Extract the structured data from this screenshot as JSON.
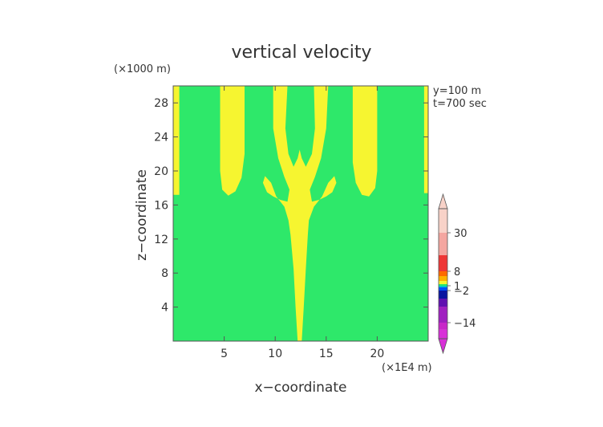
{
  "chart_data": {
    "type": "heatmap",
    "title": "vertical velocity",
    "xlabel": "x−coordinate",
    "ylabel": "z−coordinate",
    "x_unit": "(×1E4 m)",
    "y_unit": "(×1000 m)",
    "annotations": [
      "y=100  m",
      "t=700 sec"
    ],
    "xlim": [
      0,
      25
    ],
    "ylim": [
      0,
      30
    ],
    "x_ticks": [
      5,
      10,
      15,
      20
    ],
    "y_ticks": [
      4,
      8,
      12,
      16,
      20,
      24,
      28
    ],
    "x_tick_labels": [
      "5",
      "10",
      "15",
      "20"
    ],
    "y_tick_labels": [
      "4",
      "8",
      "12",
      "16",
      "20",
      "24",
      "28"
    ],
    "background_color": "#2ee86a",
    "positive_color": "#f6f530",
    "colorbar": {
      "labels": [
        {
          "text": "30",
          "value": 30
        },
        {
          "text": "8",
          "value": 8
        },
        {
          "text": "1",
          "value": 1
        },
        {
          "text": "−2",
          "value": -2
        },
        {
          "text": "−14",
          "value": -14
        }
      ],
      "segments": [
        {
          "from": 30,
          "to": 45,
          "color": "#f8d2c8"
        },
        {
          "from": 20,
          "to": 30,
          "color": "#f4a6a0"
        },
        {
          "from": 8,
          "to": 20,
          "color": "#ee3636"
        },
        {
          "from": 6,
          "to": 8,
          "color": "#ff6a00"
        },
        {
          "from": 4,
          "to": 6,
          "color": "#ffb000"
        },
        {
          "from": 2,
          "to": 4,
          "color": "#f6f530"
        },
        {
          "from": 1,
          "to": 2,
          "color": "#2ee86a"
        },
        {
          "from": 0,
          "to": 1,
          "color": "#00c8c8"
        },
        {
          "from": -2,
          "to": 0,
          "color": "#0050ff"
        },
        {
          "from": -5,
          "to": -2,
          "color": "#0a14a0"
        },
        {
          "from": -8,
          "to": -5,
          "color": "#6010b0"
        },
        {
          "from": -14,
          "to": -8,
          "color": "#a020c0"
        },
        {
          "from": -22,
          "to": -14,
          "color": "#c828c8"
        },
        {
          "from": -32,
          "to": -22,
          "color": "#d830d8"
        }
      ]
    },
    "positive_regions": [
      {
        "name": "left-edge-strip",
        "points": [
          [
            0,
            30
          ],
          [
            0.6,
            30
          ],
          [
            0.6,
            17.2
          ],
          [
            0,
            17.2
          ]
        ]
      },
      {
        "name": "right-edge-strip",
        "points": [
          [
            24.6,
            30
          ],
          [
            25,
            30
          ],
          [
            25,
            17.4
          ],
          [
            24.6,
            17.4
          ]
        ]
      },
      {
        "name": "left-plume",
        "points": [
          [
            4.6,
            30
          ],
          [
            7.0,
            30
          ],
          [
            7.0,
            22
          ],
          [
            6.7,
            19.2
          ],
          [
            6.1,
            17.6
          ],
          [
            5.4,
            17.1
          ],
          [
            4.8,
            17.8
          ],
          [
            4.6,
            20
          ]
        ]
      },
      {
        "name": "right-plume",
        "points": [
          [
            17.6,
            30
          ],
          [
            20.0,
            30
          ],
          [
            20.0,
            20
          ],
          [
            19.8,
            18
          ],
          [
            19.2,
            17.0
          ],
          [
            18.5,
            17.2
          ],
          [
            17.9,
            18.6
          ],
          [
            17.6,
            21
          ]
        ]
      },
      {
        "name": "central-plume",
        "points": [
          [
            9.8,
            30
          ],
          [
            11.2,
            30
          ],
          [
            11.0,
            25
          ],
          [
            11.3,
            22
          ],
          [
            11.8,
            20.5
          ],
          [
            12.2,
            21.5
          ],
          [
            12.4,
            22.5
          ],
          [
            12.6,
            21.5
          ],
          [
            13.0,
            20.5
          ],
          [
            13.6,
            22
          ],
          [
            13.9,
            25
          ],
          [
            13.8,
            30
          ],
          [
            15.2,
            30
          ],
          [
            15.0,
            25
          ],
          [
            14.5,
            21.5
          ],
          [
            13.9,
            19.3
          ],
          [
            13.4,
            17.8
          ],
          [
            13.6,
            16.4
          ],
          [
            14.3,
            16.6
          ],
          [
            15.0,
            17.0
          ],
          [
            15.6,
            17.5
          ],
          [
            16.0,
            18.6
          ],
          [
            15.8,
            19.4
          ],
          [
            15.2,
            18.6
          ],
          [
            14.6,
            17.0
          ],
          [
            13.8,
            15.8
          ],
          [
            13.3,
            14.2
          ],
          [
            13.2,
            12.5
          ],
          [
            13.0,
            8.5
          ],
          [
            12.8,
            4
          ],
          [
            12.6,
            0
          ],
          [
            12.2,
            0
          ],
          [
            12.0,
            4
          ],
          [
            11.8,
            8.5
          ],
          [
            11.5,
            12.5
          ],
          [
            11.3,
            14.2
          ],
          [
            10.9,
            15.8
          ],
          [
            10.1,
            17.0
          ],
          [
            9.6,
            18.6
          ],
          [
            9.0,
            19.4
          ],
          [
            8.8,
            18.6
          ],
          [
            9.2,
            17.5
          ],
          [
            9.8,
            17.0
          ],
          [
            10.5,
            16.6
          ],
          [
            11.2,
            16.4
          ],
          [
            11.4,
            17.8
          ],
          [
            10.9,
            19.3
          ],
          [
            10.3,
            21.5
          ],
          [
            9.8,
            25
          ]
        ]
      }
    ]
  }
}
